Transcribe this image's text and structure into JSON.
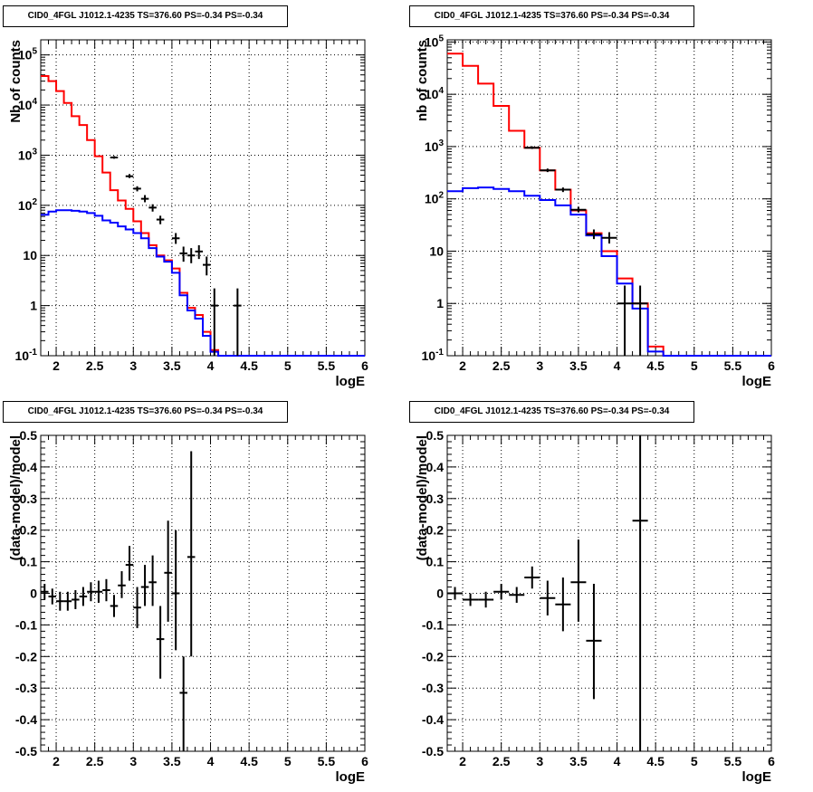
{
  "colors": {
    "data": "#000000",
    "total_model": "#ff0000",
    "source_model": "#0000ff",
    "grid": "#000000",
    "frame": "#000000"
  },
  "chart_data": [
    {
      "type": "line",
      "title": "CID0_4FGL J1012.1-4235 TS=376.60 PS=-0.34 PS=-0.34",
      "xlabel": "logE",
      "ylabel": "Nb of counts",
      "xlim": [
        1.8,
        6.0
      ],
      "ylim": [
        0.1,
        200000
      ],
      "ylog": true,
      "grid": true,
      "xticks": [
        "2",
        "2.5",
        "3",
        "3.5",
        "4",
        "4.5",
        "5",
        "5.5",
        "6"
      ],
      "yticks": [
        "10^-1",
        "1",
        "10",
        "10^2",
        "10^3",
        "10^4",
        "10^5"
      ],
      "bin_edges": [
        1.8,
        1.9,
        2.0,
        2.1,
        2.2,
        2.3,
        2.4,
        2.5,
        2.6,
        2.7,
        2.8,
        2.9,
        3.0,
        3.1,
        3.2,
        3.3,
        3.4,
        3.5,
        3.6,
        3.7,
        3.8,
        3.9,
        4.0,
        4.1,
        4.2,
        4.3,
        4.4,
        4.5,
        4.6,
        4.7,
        4.8,
        4.9,
        5.0,
        5.1,
        5.2,
        5.3,
        5.4,
        5.5,
        5.6,
        5.7,
        5.8,
        5.9,
        6.0
      ],
      "series": [
        {
          "name": "",
          "role": "total_model",
          "values": [
            38000,
            30000,
            19000,
            11000,
            6000,
            4000,
            2000,
            950,
            450,
            200,
            125,
            85,
            48,
            28,
            16,
            10,
            8,
            5.5,
            1.8,
            0.9,
            0.65,
            0.3,
            0.13,
            0.1,
            0.1,
            0.1,
            0.1,
            0.1,
            0.1,
            0.1,
            0.1,
            0.1,
            0.1,
            0.1,
            0.1,
            0.1,
            0.1,
            0.1,
            0.1,
            0.1,
            0.1,
            0.1
          ]
        },
        {
          "name": "",
          "role": "source_model",
          "values": [
            65,
            75,
            80,
            80,
            78,
            75,
            70,
            62,
            50,
            45,
            38,
            33,
            28,
            22,
            14,
            9.5,
            7.5,
            4.5,
            1.6,
            0.8,
            0.55,
            0.25,
            0.12,
            0.1,
            0.1,
            0.1,
            0.1,
            0.1,
            0.1,
            0.1,
            0.1,
            0.1,
            0.1,
            0.1,
            0.1,
            0.1,
            0.1,
            0.1,
            0.1,
            0.1,
            0.1,
            0.1
          ]
        }
      ],
      "points": [
        {
          "x": 2.75,
          "y": 900,
          "ylo": 850,
          "yhi": 960
        },
        {
          "x": 2.95,
          "y": 380,
          "ylo": 350,
          "yhi": 420
        },
        {
          "x": 3.05,
          "y": 215,
          "ylo": 190,
          "yhi": 240
        },
        {
          "x": 3.15,
          "y": 135,
          "ylo": 115,
          "yhi": 160
        },
        {
          "x": 3.25,
          "y": 90,
          "ylo": 75,
          "yhi": 105
        },
        {
          "x": 3.35,
          "y": 52,
          "ylo": 42,
          "yhi": 62
        },
        {
          "x": 3.55,
          "y": 22,
          "ylo": 17,
          "yhi": 28
        },
        {
          "x": 3.65,
          "y": 11,
          "ylo": 7.5,
          "yhi": 15
        },
        {
          "x": 3.75,
          "y": 10,
          "ylo": 7,
          "yhi": 14
        },
        {
          "x": 3.85,
          "y": 12,
          "ylo": 8.5,
          "yhi": 16
        },
        {
          "x": 3.95,
          "y": 6.5,
          "ylo": 4,
          "yhi": 9.5
        },
        {
          "x": 4.05,
          "y": 1,
          "ylo": 0.1,
          "yhi": 2.2
        },
        {
          "x": 4.35,
          "y": 1,
          "ylo": 0.1,
          "yhi": 2.2
        }
      ]
    },
    {
      "type": "line",
      "title": "CID0_4FGL J1012.1-4235 TS=376.60 PS=-0.34 PS=-0.34",
      "xlabel": "logE",
      "ylabel": "nb of counts",
      "xlim": [
        1.8,
        6.0
      ],
      "ylim": [
        0.1,
        110000
      ],
      "ylog": true,
      "grid": true,
      "xticks": [
        "2",
        "2.5",
        "3",
        "3.5",
        "4",
        "4.5",
        "5",
        "5.5",
        "6"
      ],
      "yticks": [
        "10^-1",
        "1",
        "10",
        "10^2",
        "10^3",
        "10^4",
        "10^5"
      ],
      "bin_edges": [
        1.8,
        2.0,
        2.2,
        2.4,
        2.6,
        2.8,
        3.0,
        3.2,
        3.4,
        3.6,
        3.8,
        4.0,
        4.2,
        4.4,
        4.6,
        4.8,
        5.0,
        5.2,
        5.4,
        5.6,
        5.8,
        6.0
      ],
      "series": [
        {
          "name": "",
          "role": "total_model",
          "values": [
            60000,
            35000,
            16000,
            6000,
            2000,
            950,
            350,
            150,
            60,
            22,
            10,
            3,
            1,
            0.15,
            0.1,
            0.1,
            0.1,
            0.1,
            0.1,
            0.1,
            0.1
          ]
        },
        {
          "name": "",
          "role": "source_model",
          "values": [
            140,
            160,
            165,
            155,
            140,
            115,
            95,
            75,
            50,
            20,
            8,
            2.4,
            0.8,
            0.12,
            0.1,
            0.1,
            0.1,
            0.1,
            0.1,
            0.1,
            0.1
          ]
        }
      ],
      "points": [
        {
          "x": 2.9,
          "y": 950,
          "ylo": 900,
          "yhi": 1010
        },
        {
          "x": 3.1,
          "y": 350,
          "ylo": 325,
          "yhi": 380
        },
        {
          "x": 3.3,
          "y": 150,
          "ylo": 135,
          "yhi": 165
        },
        {
          "x": 3.5,
          "y": 62,
          "ylo": 55,
          "yhi": 70
        },
        {
          "x": 3.7,
          "y": 21,
          "ylo": 17,
          "yhi": 26
        },
        {
          "x": 3.9,
          "y": 18,
          "ylo": 14,
          "yhi": 23
        },
        {
          "x": 4.1,
          "y": 1,
          "ylo": 0.1,
          "yhi": 2.2
        },
        {
          "x": 4.3,
          "y": 1,
          "ylo": 0.1,
          "yhi": 2.2
        }
      ]
    },
    {
      "type": "scatter",
      "title": "CID0_4FGL J1012.1-4235 TS=376.60 PS=-0.34 PS=-0.34",
      "xlabel": "logE",
      "ylabel": "(data-model)/model",
      "xlim": [
        1.8,
        6.0
      ],
      "ylim": [
        -0.5,
        0.5
      ],
      "grid": true,
      "xticks": [
        "2",
        "2.5",
        "3",
        "3.5",
        "4",
        "4.5",
        "5",
        "5.5",
        "6"
      ],
      "yticks": [
        "-0.5",
        "-0.4",
        "-0.3",
        "-0.2",
        "-0.1",
        "0",
        "0.1",
        "0.2",
        "0.3",
        "0.4",
        "0.5"
      ],
      "points": [
        {
          "x": 1.85,
          "y": 0.005,
          "ylo": -0.02,
          "yhi": 0.03,
          "xerr": 0.05
        },
        {
          "x": 1.95,
          "y": -0.01,
          "ylo": -0.035,
          "yhi": 0.015,
          "xerr": 0.05
        },
        {
          "x": 2.05,
          "y": -0.025,
          "ylo": -0.055,
          "yhi": 0.005,
          "xerr": 0.05
        },
        {
          "x": 2.15,
          "y": -0.025,
          "ylo": -0.055,
          "yhi": 0.005,
          "xerr": 0.05
        },
        {
          "x": 2.25,
          "y": -0.02,
          "ylo": -0.05,
          "yhi": 0.01,
          "xerr": 0.05
        },
        {
          "x": 2.35,
          "y": -0.01,
          "ylo": -0.04,
          "yhi": 0.02,
          "xerr": 0.05
        },
        {
          "x": 2.45,
          "y": 0.005,
          "ylo": -0.025,
          "yhi": 0.035,
          "xerr": 0.05
        },
        {
          "x": 2.55,
          "y": 0.005,
          "ylo": -0.03,
          "yhi": 0.04,
          "xerr": 0.05
        },
        {
          "x": 2.65,
          "y": 0.01,
          "ylo": -0.025,
          "yhi": 0.045,
          "xerr": 0.05
        },
        {
          "x": 2.75,
          "y": -0.04,
          "ylo": -0.075,
          "yhi": -0.005,
          "xerr": 0.05
        },
        {
          "x": 2.85,
          "y": 0.025,
          "ylo": -0.015,
          "yhi": 0.07,
          "xerr": 0.05
        },
        {
          "x": 2.95,
          "y": 0.09,
          "ylo": 0.04,
          "yhi": 0.15,
          "xerr": 0.05
        },
        {
          "x": 3.05,
          "y": -0.045,
          "ylo": -0.11,
          "yhi": 0.02,
          "xerr": 0.05
        },
        {
          "x": 3.15,
          "y": 0.02,
          "ylo": -0.04,
          "yhi": 0.09,
          "xerr": 0.05
        },
        {
          "x": 3.25,
          "y": 0.035,
          "ylo": -0.04,
          "yhi": 0.12,
          "xerr": 0.05
        },
        {
          "x": 3.35,
          "y": -0.145,
          "ylo": -0.27,
          "yhi": -0.04,
          "xerr": 0.05
        },
        {
          "x": 3.45,
          "y": 0.065,
          "ylo": -0.09,
          "yhi": 0.23,
          "xerr": 0.05
        },
        {
          "x": 3.55,
          "y": 0.0,
          "ylo": -0.18,
          "yhi": 0.2,
          "xerr": 0.05
        },
        {
          "x": 3.65,
          "y": -0.315,
          "ylo": -0.5,
          "yhi": -0.2,
          "xerr": 0.05
        },
        {
          "x": 3.75,
          "y": 0.115,
          "ylo": -0.2,
          "yhi": 0.45,
          "xerr": 0.05
        }
      ]
    },
    {
      "type": "scatter",
      "title": "CID0_4FGL J1012.1-4235 TS=376.60 PS=-0.34 PS=-0.34",
      "xlabel": "logE",
      "ylabel": "(data-model)/model",
      "xlim": [
        1.8,
        6.0
      ],
      "ylim": [
        -0.5,
        0.5
      ],
      "grid": true,
      "xticks": [
        "2",
        "2.5",
        "3",
        "3.5",
        "4",
        "4.5",
        "5",
        "5.5",
        "6"
      ],
      "yticks": [
        "-0.5",
        "-0.4",
        "-0.3",
        "-0.2",
        "-0.1",
        "0",
        "0.1",
        "0.2",
        "0.3",
        "0.4",
        "0.5"
      ],
      "points": [
        {
          "x": 1.9,
          "y": 0.0,
          "ylo": -0.02,
          "yhi": 0.02,
          "xerr": 0.1
        },
        {
          "x": 2.1,
          "y": -0.02,
          "ylo": -0.04,
          "yhi": 0.0,
          "xerr": 0.1
        },
        {
          "x": 2.3,
          "y": -0.02,
          "ylo": -0.045,
          "yhi": 0.005,
          "xerr": 0.1
        },
        {
          "x": 2.5,
          "y": 0.005,
          "ylo": -0.02,
          "yhi": 0.03,
          "xerr": 0.1
        },
        {
          "x": 2.7,
          "y": -0.005,
          "ylo": -0.03,
          "yhi": 0.02,
          "xerr": 0.1
        },
        {
          "x": 2.9,
          "y": 0.05,
          "ylo": 0.015,
          "yhi": 0.085,
          "xerr": 0.1
        },
        {
          "x": 3.1,
          "y": -0.015,
          "ylo": -0.07,
          "yhi": 0.04,
          "xerr": 0.1
        },
        {
          "x": 3.3,
          "y": -0.035,
          "ylo": -0.12,
          "yhi": 0.05,
          "xerr": 0.1
        },
        {
          "x": 3.5,
          "y": 0.035,
          "ylo": -0.09,
          "yhi": 0.17,
          "xerr": 0.1
        },
        {
          "x": 3.7,
          "y": -0.15,
          "ylo": -0.335,
          "yhi": 0.03,
          "xerr": 0.1
        },
        {
          "x": 4.3,
          "y": 0.23,
          "ylo": -0.5,
          "yhi": 0.5,
          "xerr": 0.1
        }
      ]
    }
  ]
}
